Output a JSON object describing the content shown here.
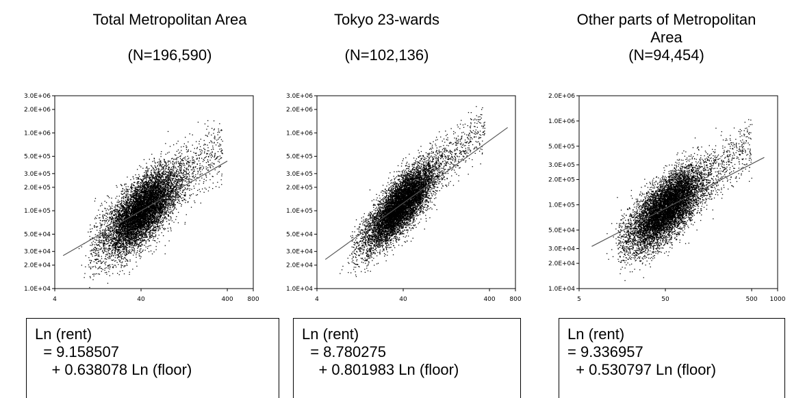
{
  "panels": [
    {
      "title_line1": "Total Metropolitan Area",
      "title_line2": "",
      "title_n": "(N=196,590)",
      "equation": [
        "Ln (rent)",
        "  = 9.158507",
        "    + 0.638078 Ln (floor)"
      ]
    },
    {
      "title_line1": "Tokyo 23-wards",
      "title_line2": "",
      "title_n": "(N=102,136)",
      "equation": [
        "Ln (rent)",
        "  = 8.780275",
        "    + 0.801983 Ln (floor)"
      ]
    },
    {
      "title_line1": "Other parts of Metropolitan",
      "title_line2": "Area",
      "title_n": "(N=94,454)",
      "equation": [
        "Ln (rent)",
        "= 9.336957",
        "  + 0.530797 Ln (floor)"
      ]
    }
  ],
  "chart_data": [
    {
      "type": "scatter",
      "title": "Total Metropolitan Area",
      "subtitle": "(N=196,590)",
      "xlabel": "",
      "ylabel": "",
      "x_scale": "log",
      "y_scale": "log",
      "xlim": [
        4,
        800
      ],
      "ylim": [
        10000,
        3000000
      ],
      "x_ticks": [
        4,
        40,
        400,
        800
      ],
      "x_tick_labels": [
        "4",
        "40",
        "400",
        "800"
      ],
      "y_ticks": [
        10000,
        20000,
        30000,
        50000,
        100000,
        200000,
        300000,
        500000,
        1000000,
        2000000,
        3000000
      ],
      "y_tick_labels": [
        "1.0E+04",
        "2.0E+04",
        "3.0E+04",
        "5.0E+04",
        "1.0E+05",
        "2.0E+05",
        "3.0E+05",
        "5.0E+05",
        "1.0E+06",
        "2.0E+06",
        "3.0E+06"
      ],
      "regression": {
        "intercept": 9.158507,
        "slope": 0.638078,
        "x_range": [
          5,
          400
        ]
      },
      "cloud": {
        "x_min": 10,
        "x_max": 350,
        "core_x": [
          14,
          120
        ],
        "spread": 0.45
      },
      "marker_color": "#000000",
      "line_color": "#555555",
      "grid": false
    },
    {
      "type": "scatter",
      "title": "Tokyo 23-wards",
      "subtitle": "(N=102,136)",
      "xlabel": "",
      "ylabel": "",
      "x_scale": "log",
      "y_scale": "log",
      "xlim": [
        4,
        800
      ],
      "ylim": [
        10000,
        3000000
      ],
      "x_ticks": [
        4,
        40,
        400,
        800
      ],
      "x_tick_labels": [
        "4",
        "40",
        "400",
        "800"
      ],
      "y_ticks": [
        10000,
        20000,
        30000,
        50000,
        100000,
        200000,
        300000,
        500000,
        1000000,
        2000000,
        3000000
      ],
      "y_tick_labels": [
        "1.0E+04",
        "2.0E+04",
        "3.0E+04",
        "5.0E+04",
        "1.0E+05",
        "2.0E+05",
        "3.0E+05",
        "5.0E+05",
        "1.0E+06",
        "2.0E+06",
        "3.0E+06"
      ],
      "regression": {
        "intercept": 8.780275,
        "slope": 0.801983,
        "x_range": [
          5,
          650
        ]
      },
      "cloud": {
        "x_min": 10,
        "x_max": 350,
        "core_x": [
          14,
          100
        ],
        "spread": 0.38
      },
      "marker_color": "#000000",
      "line_color": "#555555",
      "grid": false
    },
    {
      "type": "scatter",
      "title": "Other parts of Metropolitan Area",
      "subtitle": "(N=94,454)",
      "xlabel": "",
      "ylabel": "",
      "x_scale": "log",
      "y_scale": "log",
      "xlim": [
        5,
        1000
      ],
      "ylim": [
        10000,
        2000000
      ],
      "x_ticks": [
        5,
        50,
        500,
        1000
      ],
      "x_tick_labels": [
        "5",
        "50",
        "500",
        "1000"
      ],
      "y_ticks": [
        10000,
        20000,
        30000,
        50000,
        100000,
        200000,
        300000,
        500000,
        1000000,
        2000000
      ],
      "y_tick_labels": [
        "1.0E+04",
        "2.0E+04",
        "3.0E+04",
        "5.0E+04",
        "1.0E+05",
        "2.0E+05",
        "3.0E+05",
        "5.0E+05",
        "1.0E+06",
        "2.0E+06"
      ],
      "regression": {
        "intercept": 9.336957,
        "slope": 0.530797,
        "x_range": [
          7,
          700
        ]
      },
      "cloud": {
        "x_min": 14,
        "x_max": 500,
        "core_x": [
          18,
          150
        ],
        "spread": 0.4
      },
      "marker_color": "#000000",
      "line_color": "#555555",
      "grid": false
    }
  ]
}
